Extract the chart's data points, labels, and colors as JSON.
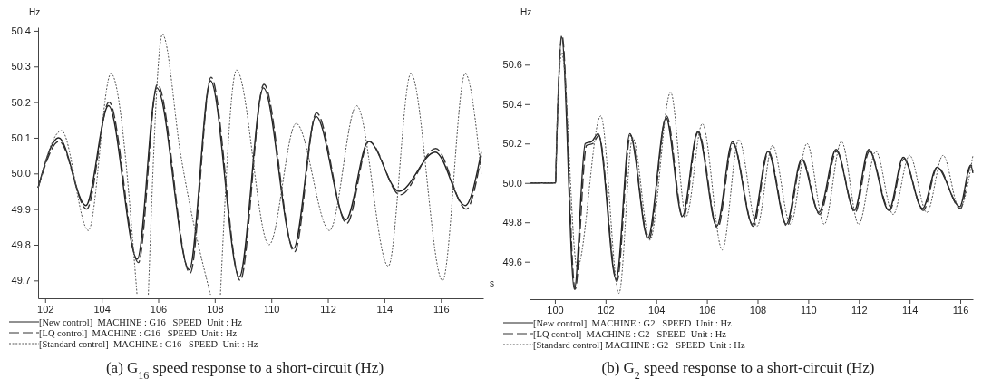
{
  "chart_data": [
    {
      "type": "line",
      "title": "(a) G$_{16}$ speed response to a short-circuit (Hz)",
      "xlabel": "s",
      "ylabel": "Hz",
      "xlim": [
        101.75,
        117.5
      ],
      "ylim": [
        49.65,
        50.41
      ],
      "xticks": [
        102,
        104,
        106,
        108,
        110,
        112,
        114,
        116
      ],
      "yticks": [
        49.7,
        49.8,
        49.9,
        {
          "value": 50,
          "label": "50.0"
        },
        50.1,
        50.2,
        50.3,
        50.4
      ],
      "legend": "bottom",
      "series": [
        {
          "name": "[New control]  MACHINE : G16   SPEED  Unit : Hz",
          "color": "#222222",
          "line_style": "solid",
          "x": [
            101.75,
            102.48,
            103.44,
            104.24,
            105.26,
            105.95,
            107.1,
            107.85,
            108.87,
            109.72,
            110.79,
            111.58,
            112.64,
            113.44,
            114.52,
            115.8,
            116.86,
            117.43
          ],
          "values": [
            49.96,
            50.1,
            49.91,
            50.19,
            49.76,
            50.24,
            49.73,
            50.26,
            49.71,
            50.24,
            49.79,
            50.16,
            49.87,
            50.09,
            49.95,
            50.06,
            49.91,
            50.06
          ]
        },
        {
          "name": "[LQ control]  MACHINE : G16   SPEED  Unit : Hz",
          "color": "#333333",
          "line_style": "dashed",
          "x": [
            101.75,
            102.5,
            103.47,
            104.26,
            105.3,
            105.97,
            107.13,
            107.87,
            108.9,
            109.74,
            110.82,
            111.6,
            112.67,
            113.46,
            114.56,
            115.82,
            116.9,
            117.43
          ],
          "values": [
            49.96,
            50.09,
            49.9,
            50.2,
            49.75,
            50.25,
            49.72,
            50.27,
            49.7,
            50.25,
            49.78,
            50.17,
            49.86,
            50.09,
            49.94,
            50.07,
            49.9,
            50.05
          ]
        },
        {
          "name": "[Standard control]  MACHINE : G16   SPEED  Unit : Hz",
          "color": "#555555",
          "line_style": "dotted",
          "x": [
            101.75,
            102.58,
            103.53,
            104.33,
            105.25,
            105.45,
            105.65,
            106.15,
            106.8,
            107.05,
            107.85,
            108.0,
            108.2,
            108.77,
            109.92,
            110.88,
            112.06,
            113.02,
            114.14,
            114.94,
            116.06,
            116.86,
            117.43
          ],
          "values": [
            49.96,
            50.12,
            49.84,
            50.28,
            49.66,
            null,
            49.66,
            50.39,
            50.05,
            49.94,
            49.66,
            null,
            49.66,
            50.29,
            49.8,
            50.14,
            49.84,
            50.19,
            49.74,
            50.28,
            49.7,
            50.28,
            50.0
          ]
        }
      ]
    },
    {
      "type": "line",
      "title": "(b) G$_{2}$ speed response to a short-circuit (Hz)",
      "ylabel": "Hz",
      "xlim": [
        99.0,
        116.5
      ],
      "ylim": [
        49.41,
        50.79
      ],
      "xticks": [
        100,
        102,
        104,
        106,
        108,
        110,
        112,
        114,
        116
      ],
      "yticks": [
        49.6,
        49.8,
        {
          "value": 50,
          "label": "50.0"
        },
        50.2,
        50.4,
        50.6
      ],
      "legend": "bottom",
      "series": [
        {
          "name": "[New control]  MACHINE : G2   SPEED  Unit : Hz",
          "color": "#222222",
          "line_style": "solid",
          "x": [
            99.0,
            100.03,
            100.05,
            100.27,
            100.77,
            101.2,
            101.45,
            101.71,
            102.42,
            102.96,
            103.67,
            104.39,
            105.03,
            105.64,
            106.39,
            107.01,
            107.8,
            108.41,
            109.13,
            109.74,
            110.42,
            111.1,
            111.82,
            112.39,
            113.18,
            113.75,
            114.51,
            115.08,
            115.98,
            116.41,
            116.5
          ],
          "values": [
            50.0,
            50.0,
            50.1,
            50.74,
            49.46,
            50.2,
            50.21,
            50.25,
            49.51,
            50.25,
            49.72,
            50.33,
            49.83,
            50.26,
            49.78,
            50.21,
            49.79,
            50.16,
            49.79,
            50.12,
            49.85,
            50.17,
            49.86,
            50.17,
            49.86,
            50.13,
            49.87,
            50.08,
            49.88,
            50.09,
            50.05
          ]
        },
        {
          "name": "[LQ control]  MACHINE : G2   SPEED  Unit : Hz",
          "color": "#333333",
          "line_style": "dashed",
          "x": [
            99.0,
            100.03,
            100.05,
            100.28,
            100.8,
            101.25,
            101.5,
            101.73,
            102.45,
            102.98,
            103.7,
            104.41,
            105.06,
            105.66,
            106.42,
            107.03,
            107.83,
            108.43,
            109.16,
            109.76,
            110.45,
            111.12,
            111.85,
            112.41,
            113.21,
            113.77,
            114.54,
            115.1,
            116.01,
            116.43,
            116.5
          ],
          "values": [
            50.0,
            50.0,
            50.1,
            50.75,
            49.46,
            50.19,
            50.2,
            50.24,
            49.5,
            50.24,
            49.71,
            50.34,
            49.82,
            50.26,
            49.77,
            50.2,
            49.78,
            50.16,
            49.78,
            50.12,
            49.84,
            50.16,
            49.85,
            50.16,
            49.86,
            50.12,
            49.86,
            50.08,
            49.87,
            50.09,
            50.06
          ]
        },
        {
          "name": "[Standard control] MACHINE : G2   SPEED  Unit : Hz",
          "color": "#555555",
          "line_style": "dotted",
          "x": [
            99.0,
            100.03,
            100.05,
            100.27,
            100.88,
            101.81,
            102.53,
            103.07,
            103.75,
            104.57,
            105.18,
            105.82,
            106.61,
            107.26,
            107.98,
            108.59,
            109.3,
            109.95,
            110.63,
            111.31,
            111.99,
            112.67,
            113.35,
            114.0,
            114.68,
            115.32,
            115.97,
            116.5
          ],
          "values": [
            50.0,
            50.0,
            50.1,
            50.66,
            49.57,
            50.34,
            49.44,
            50.23,
            49.71,
            50.46,
            49.83,
            50.3,
            49.66,
            50.22,
            49.78,
            50.19,
            49.79,
            50.2,
            49.79,
            50.21,
            49.79,
            50.16,
            49.84,
            50.14,
            49.85,
            50.14,
            49.87,
            50.14
          ]
        }
      ]
    }
  ]
}
